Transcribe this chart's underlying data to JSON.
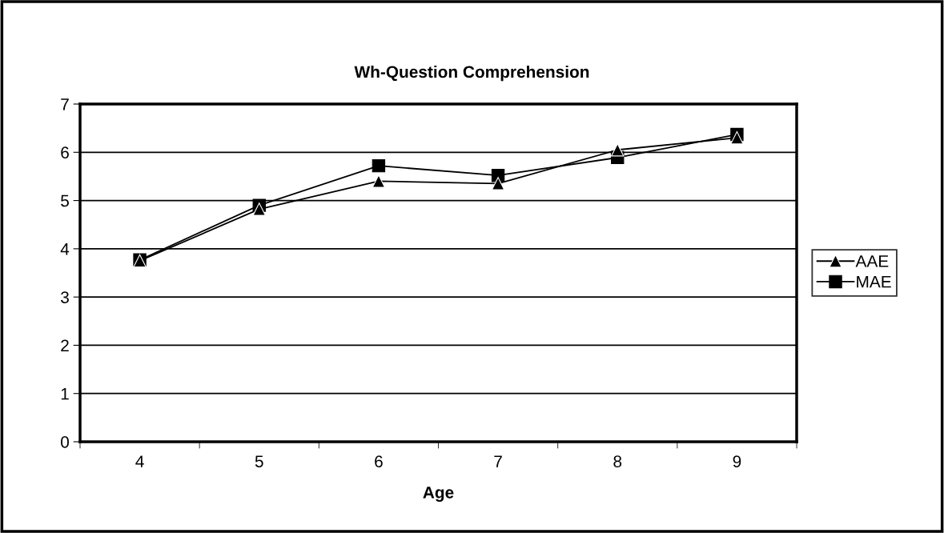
{
  "chart_data": {
    "type": "line",
    "title": "Wh-Question Comprehension",
    "xlabel": "Age",
    "categories": [
      "4",
      "5",
      "6",
      "7",
      "8",
      "9"
    ],
    "series": [
      {
        "name": "AAE",
        "color": "#000000",
        "marker": "triangle",
        "values": [
          3.75,
          4.82,
          5.4,
          5.35,
          6.05,
          6.3
        ]
      },
      {
        "name": "MAE",
        "color": "#000000",
        "marker": "square",
        "values": [
          3.77,
          4.9,
          5.72,
          5.52,
          5.89,
          6.37
        ]
      }
    ],
    "ylim": [
      0,
      7
    ],
    "yticks": [
      0,
      1,
      2,
      3,
      4,
      5,
      6,
      7
    ],
    "grid": "y",
    "legend": "right",
    "line_style": "solid"
  }
}
